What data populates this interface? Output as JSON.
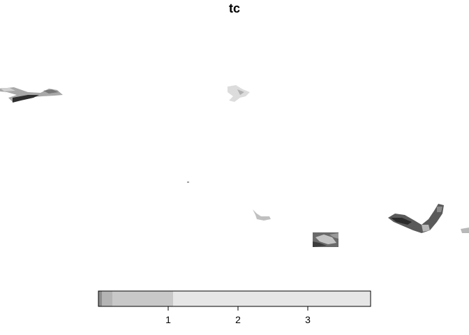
{
  "title": "tc",
  "map": {
    "kind": "raster",
    "palette": "grayscale",
    "colors": {
      "low": "#8c8c8c",
      "mid": "#c8c8c8",
      "high": "#e6e6e6",
      "outline": "#000000"
    }
  },
  "legend": {
    "type": "colorbar",
    "range": [
      0.0,
      3.9
    ],
    "ticks": [
      1,
      2,
      3
    ],
    "tick_labels": [
      "1",
      "2",
      "3"
    ],
    "bands": [
      {
        "from": 0.0,
        "to": 0.05,
        "color": "#8c8c8c"
      },
      {
        "from": 0.05,
        "to": 0.2,
        "color": "#b4b4b4"
      },
      {
        "from": 0.2,
        "to": 1.07,
        "color": "#c8c8c8"
      },
      {
        "from": 1.07,
        "to": 3.9,
        "color": "#e6e6e6"
      }
    ]
  }
}
